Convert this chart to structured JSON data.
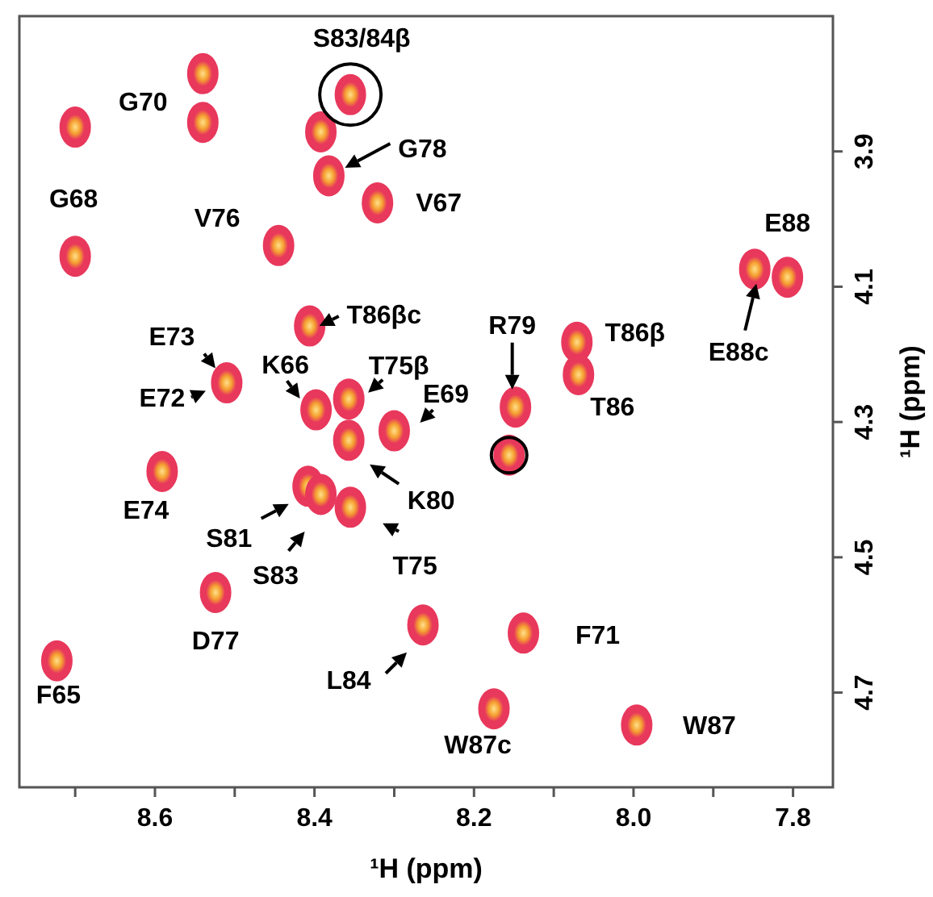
{
  "chart_data": {
    "type": "scatter",
    "xlabel": "¹H (ppm)",
    "ylabel": "¹H (ppm)",
    "color": "#e8385c",
    "marker": "circle",
    "grid": false,
    "xlim": [
      8.77,
      7.75
    ],
    "ylim": [
      4.84,
      3.7
    ],
    "xticks": [
      {
        "value": 8.7,
        "label": null
      },
      8.6,
      {
        "value": 8.5,
        "label": null
      },
      8.4,
      {
        "value": 8.3,
        "label": null
      },
      8.2,
      {
        "value": 8.1,
        "label": null
      },
      {
        "value": 8.0,
        "label": "8.0"
      },
      {
        "value": 7.9,
        "label": null
      },
      7.8
    ],
    "yticks": [
      3.9,
      4.1,
      4.3,
      4.5,
      4.7
    ],
    "x": [
      8.7,
      8.7,
      8.54,
      8.54,
      8.392,
      8.355,
      8.382,
      8.321,
      8.445,
      8.406,
      8.51,
      8.398,
      8.357,
      8.357,
      8.3,
      8.148,
      8.071,
      8.069,
      7.807,
      7.848,
      8.156,
      8.591,
      8.408,
      8.392,
      8.355,
      8.524,
      8.723,
      8.264,
      8.175,
      8.138,
      7.996
    ],
    "values": [
      3.864,
      4.055,
      3.785,
      3.857,
      3.871,
      3.816,
      3.936,
      3.976,
      4.039,
      4.158,
      4.242,
      4.282,
      4.266,
      4.327,
      4.313,
      4.278,
      4.182,
      4.23,
      4.086,
      4.074,
      4.349,
      4.373,
      4.395,
      4.407,
      4.426,
      4.552,
      4.653,
      4.6,
      4.724,
      4.612,
      4.748
    ],
    "annotations": [
      {
        "text": "G68",
        "x": 8.7,
        "y": 4.055
      },
      {
        "text": "G70",
        "x": 8.54,
        "y": 3.857
      },
      {
        "text": "S83/84β",
        "x": 8.355,
        "y": 3.816
      },
      {
        "text": "G78",
        "x": 8.382,
        "y": 3.936
      },
      {
        "text": "V67",
        "x": 8.321,
        "y": 3.976
      },
      {
        "text": "V76",
        "x": 8.445,
        "y": 4.039
      },
      {
        "text": "T86βc",
        "x": 8.406,
        "y": 4.158
      },
      {
        "text": "E73",
        "x": 8.51,
        "y": 4.242
      },
      {
        "text": "E72",
        "x": 8.51,
        "y": 4.242
      },
      {
        "text": "K66",
        "x": 8.398,
        "y": 4.282
      },
      {
        "text": "T75β",
        "x": 8.357,
        "y": 4.266
      },
      {
        "text": "E69",
        "x": 8.3,
        "y": 4.313
      },
      {
        "text": "R79",
        "x": 8.148,
        "y": 4.278
      },
      {
        "text": "T86β",
        "x": 8.071,
        "y": 4.182
      },
      {
        "text": "T86",
        "x": 8.069,
        "y": 4.23
      },
      {
        "text": "E88",
        "x": 7.807,
        "y": 4.086
      },
      {
        "text": "E88c",
        "x": 7.848,
        "y": 4.074
      },
      {
        "text": "E74",
        "x": 8.591,
        "y": 4.373
      },
      {
        "text": "S81",
        "x": 8.408,
        "y": 4.395
      },
      {
        "text": "S83",
        "x": 8.392,
        "y": 4.407
      },
      {
        "text": "T75",
        "x": 8.355,
        "y": 4.426
      },
      {
        "text": "K80",
        "x": 8.357,
        "y": 4.327
      },
      {
        "text": "D77",
        "x": 8.524,
        "y": 4.552
      },
      {
        "text": "F65",
        "x": 8.723,
        "y": 4.653
      },
      {
        "text": "L84",
        "x": 8.264,
        "y": 4.6
      },
      {
        "text": "W87c",
        "x": 8.175,
        "y": 4.724
      },
      {
        "text": "F71",
        "x": 8.138,
        "y": 4.612
      },
      {
        "text": "W87",
        "x": 7.996,
        "y": 4.748
      }
    ]
  }
}
